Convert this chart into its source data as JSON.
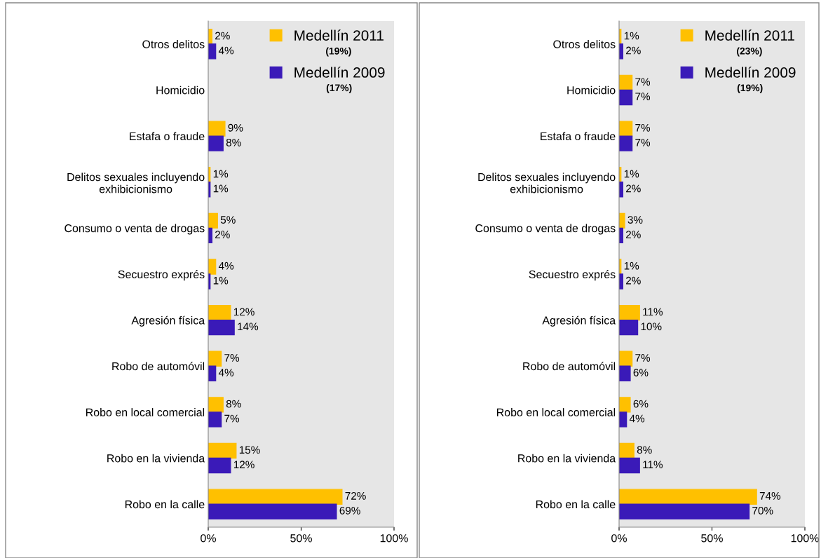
{
  "chart_data": [
    {
      "type": "bar",
      "orientation": "horizontal",
      "categories": [
        "Otros delitos",
        "Homicidio",
        "Estafa o fraude",
        "Delitos sexuales incluyendo\nexhibicionismo",
        "Consumo o venta de drogas",
        "Secuestro exprés",
        "Agresión física",
        "Robo de automóvil",
        "Robo en local comercial",
        "Robo en la vivienda",
        "Robo en la calle"
      ],
      "series": [
        {
          "name": "Medellín 2011",
          "color": "#ffc000",
          "values": [
            2,
            null,
            9,
            1,
            5,
            4,
            12,
            7,
            8,
            15,
            72
          ],
          "value_labels": [
            "2%",
            null,
            "9%",
            "1%",
            "5%",
            "4%",
            "12%",
            "7%",
            "8%",
            "15%",
            "72%"
          ]
        },
        {
          "name": "Medellín 2009",
          "color": "#3a1ab8",
          "values": [
            4,
            null,
            8,
            1,
            2,
            1,
            14,
            4,
            7,
            12,
            69
          ],
          "value_labels": [
            "4%",
            null,
            "8%",
            "1%",
            "2%",
            "1%",
            "14%",
            "4%",
            "7%",
            "12%",
            "69%"
          ]
        }
      ],
      "annotations": [
        "(19%)",
        "(17%)"
      ],
      "xlim": [
        0,
        100
      ],
      "xticks": [
        {
          "value": 0,
          "label": "0%"
        },
        {
          "value": 50,
          "label": "50%"
        },
        {
          "value": 100,
          "label": "100%"
        }
      ],
      "legend": "top right",
      "grid": false
    },
    {
      "type": "bar",
      "orientation": "horizontal",
      "categories": [
        "Otros delitos",
        "Homicidio",
        "Estafa o fraude",
        "Delitos sexuales incluyendo\nexhibicionismo",
        "Consumo o venta de drogas",
        "Secuestro exprés",
        "Agresión física",
        "Robo de automóvil",
        "Robo en local comercial",
        "Robo en la vivienda",
        "Robo en la calle"
      ],
      "series": [
        {
          "name": "Medellín 2011",
          "color": "#ffc000",
          "values": [
            1,
            7,
            7,
            1,
            3,
            1,
            11,
            7,
            6,
            8,
            74
          ],
          "value_labels": [
            "1%",
            "7%",
            "7%",
            "1%",
            "3%",
            "1%",
            "11%",
            "7%",
            "6%",
            "8%",
            "74%"
          ]
        },
        {
          "name": "Medellín 2009",
          "color": "#3a1ab8",
          "values": [
            2,
            7,
            7,
            2,
            2,
            2,
            10,
            6,
            4,
            11,
            70
          ],
          "value_labels": [
            "2%",
            "7%",
            "7%",
            "2%",
            "2%",
            "2%",
            "10%",
            "6%",
            "4%",
            "11%",
            "70%"
          ]
        }
      ],
      "annotations": [
        "(23%)",
        "(19%)"
      ],
      "xlim": [
        0,
        100
      ],
      "xticks": [
        {
          "value": 0,
          "label": "0%"
        },
        {
          "value": 50,
          "label": "50%"
        },
        {
          "value": 100,
          "label": "100%"
        }
      ],
      "legend": "top right",
      "grid": false
    }
  ]
}
